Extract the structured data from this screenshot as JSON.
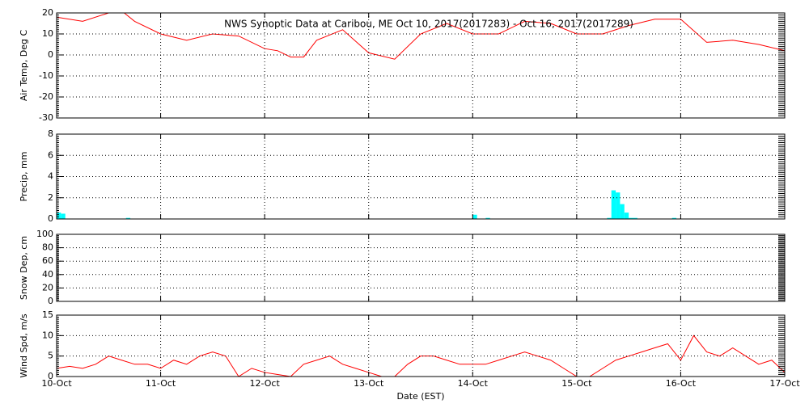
{
  "chart_data": [
    {
      "type": "line",
      "title": "NWS Synoptic Data at Caribou, ME   Oct 10, 2017(2017283) - Oct 16, 2017(2017289)",
      "ylabel": "Air Temp, Deg C",
      "xlim": [
        0,
        168
      ],
      "xticks": [
        0,
        24,
        48,
        72,
        96,
        120,
        144,
        168
      ],
      "ylim": [
        -30,
        20
      ],
      "yticks": [
        -30,
        -20,
        -10,
        0,
        10,
        20
      ],
      "grid": true,
      "x": [
        0,
        6,
        12,
        15,
        18,
        24,
        30,
        36,
        42,
        48,
        51,
        54,
        57,
        60,
        66,
        72,
        78,
        84,
        90,
        96,
        102,
        108,
        114,
        120,
        126,
        132,
        138,
        144,
        150,
        156,
        162,
        168
      ],
      "series": [
        {
          "name": "Air Temp",
          "color": "#ff0000",
          "values": [
            18,
            16,
            20,
            21,
            16,
            10,
            7,
            10,
            9,
            3,
            2,
            -1,
            -1,
            7,
            12,
            1,
            -2,
            10,
            15,
            10,
            10,
            16,
            15,
            10,
            10,
            14,
            17,
            17,
            6,
            7,
            5,
            2
          ]
        }
      ]
    },
    {
      "type": "bar",
      "ylabel": "Precip, mm",
      "xlim": [
        0,
        168
      ],
      "xticks": [
        0,
        24,
        48,
        72,
        96,
        120,
        144,
        168
      ],
      "ylim": [
        0,
        8
      ],
      "yticks": [
        0,
        2,
        4,
        6,
        8
      ],
      "grid": true,
      "x": [
        0,
        1,
        16,
        96,
        99,
        127,
        128,
        129,
        130,
        131,
        132,
        133,
        142
      ],
      "series": [
        {
          "name": "Precip",
          "color": "#00ffff",
          "values": [
            0.6,
            0.5,
            0.1,
            0.4,
            0.1,
            0.1,
            2.7,
            2.5,
            1.4,
            0.6,
            0.1,
            0.1,
            0.1
          ]
        }
      ]
    },
    {
      "type": "line",
      "ylabel": "Snow Dep, cm",
      "xlim": [
        0,
        168
      ],
      "xticks": [
        0,
        24,
        48,
        72,
        96,
        120,
        144,
        168
      ],
      "ylim": [
        0,
        100
      ],
      "yticks": [
        0,
        20,
        40,
        60,
        80,
        100
      ],
      "grid": true
    },
    {
      "type": "line",
      "ylabel": "Wind Spd, m/s",
      "xlabel": "Date (EST)",
      "xlim": [
        0,
        168
      ],
      "xticks": [
        {
          "value": 0,
          "label": "10-Oct"
        },
        {
          "value": 24,
          "label": "11-Oct"
        },
        {
          "value": 48,
          "label": "12-Oct"
        },
        {
          "value": 72,
          "label": "13-Oct"
        },
        {
          "value": 96,
          "label": "14-Oct"
        },
        {
          "value": 120,
          "label": "15-Oct"
        },
        {
          "value": 144,
          "label": "16-Oct"
        },
        {
          "value": 168,
          "label": "17-Oct"
        }
      ],
      "ylim": [
        0,
        15
      ],
      "yticks": [
        0,
        5,
        10,
        15
      ],
      "grid": true,
      "x": [
        0,
        3,
        6,
        9,
        12,
        15,
        18,
        21,
        24,
        27,
        30,
        33,
        36,
        39,
        42,
        45,
        48,
        51,
        54,
        57,
        60,
        63,
        66,
        69,
        72,
        75,
        78,
        81,
        84,
        87,
        90,
        93,
        96,
        99,
        102,
        105,
        108,
        111,
        114,
        117,
        120,
        123,
        126,
        129,
        132,
        135,
        138,
        141,
        144,
        147,
        150,
        153,
        156,
        159,
        162,
        165,
        168
      ],
      "series": [
        {
          "name": "Wind Spd",
          "color": "#ff0000",
          "values": [
            2,
            2.5,
            2,
            3,
            5,
            4,
            3,
            3,
            2,
            4,
            3,
            5,
            6,
            5,
            0,
            2,
            1,
            0.5,
            0,
            3,
            4,
            5,
            3,
            2,
            1,
            0,
            0,
            3,
            5,
            5,
            4,
            3,
            3,
            3,
            4,
            5,
            6,
            5,
            4,
            2,
            0,
            0,
            2,
            4,
            5,
            6,
            7,
            8,
            4,
            10,
            6,
            5,
            7,
            5,
            3,
            4,
            1
          ]
        }
      ]
    }
  ]
}
